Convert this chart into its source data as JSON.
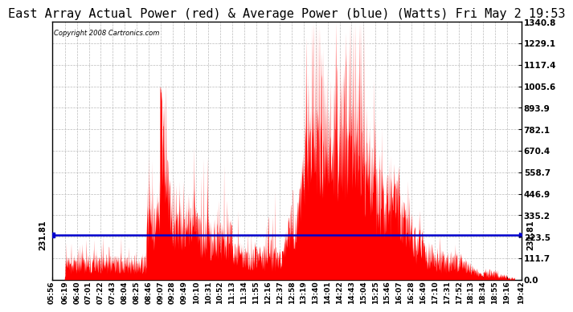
{
  "title": "East Array Actual Power (red) & Average Power (blue) (Watts) Fri May 2 19:53",
  "copyright": "Copyright 2008 Cartronics.com",
  "avg_power": 231.81,
  "ymax": 1340.8,
  "ymin": 0.0,
  "yticks": [
    0.0,
    111.7,
    223.5,
    335.2,
    446.9,
    558.7,
    670.4,
    782.1,
    893.9,
    1005.6,
    1117.4,
    1229.1,
    1340.8
  ],
  "title_fontsize": 11,
  "bg_color": "#ffffff",
  "grid_color": "#bbbbbb",
  "line_avg_color": "#0000cc",
  "fill_color": "#ff0000",
  "xtick_labels": [
    "05:56",
    "06:19",
    "06:40",
    "07:01",
    "07:22",
    "07:43",
    "08:04",
    "08:25",
    "08:46",
    "09:07",
    "09:28",
    "09:49",
    "10:10",
    "10:31",
    "10:52",
    "11:13",
    "11:34",
    "11:55",
    "12:16",
    "12:37",
    "12:58",
    "13:19",
    "13:40",
    "14:01",
    "14:22",
    "14:43",
    "15:04",
    "15:25",
    "15:46",
    "16:07",
    "16:28",
    "16:49",
    "17:10",
    "17:31",
    "17:52",
    "18:13",
    "18:34",
    "18:55",
    "19:16",
    "19:42"
  ],
  "seed": 1234
}
